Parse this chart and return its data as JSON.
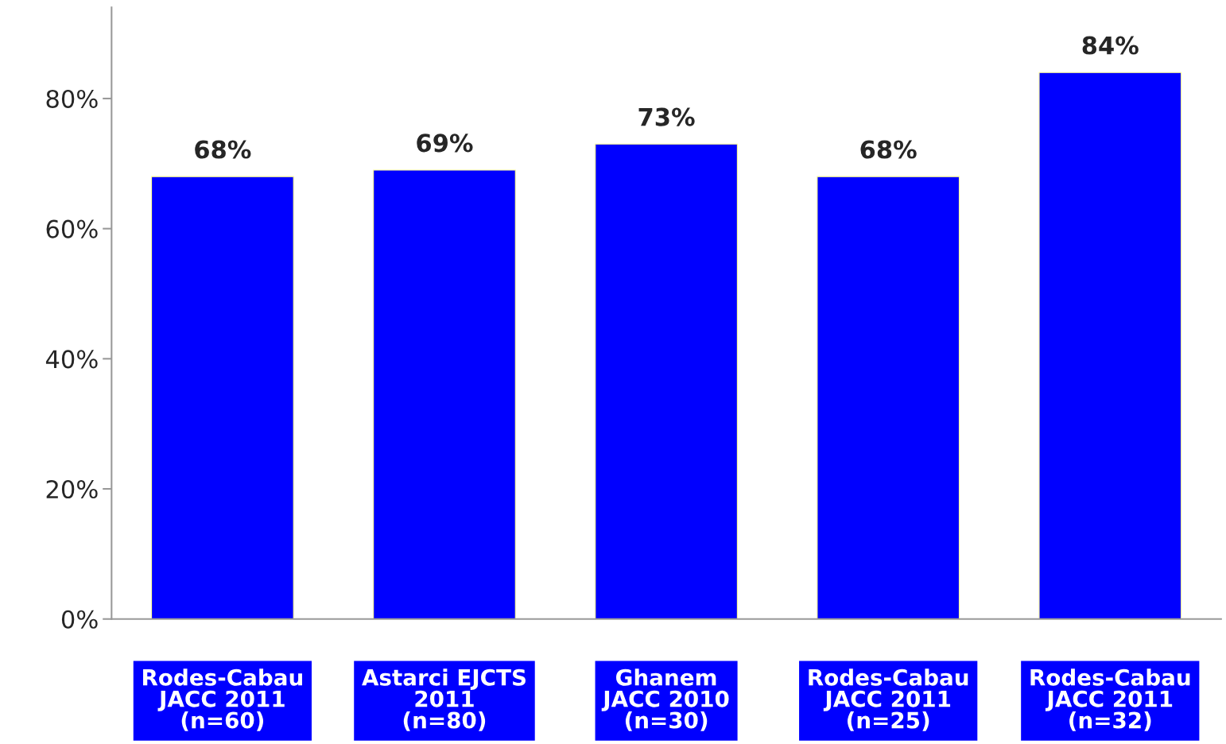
{
  "chart_data": {
    "type": "bar",
    "categories": [
      "Rodes-Cabau\nJACC 2011\n(n=60)",
      "Astarci EJCTS\n2011\n(n=80)",
      "Ghanem\nJACC 2010\n(n=30)",
      "Rodes-Cabau\nJACC 2011\n(n=25)",
      "Rodes-Cabau\nJACC 2011\n(n=32)"
    ],
    "values": [
      68,
      69,
      73,
      68,
      84
    ],
    "value_labels": [
      "68%",
      "69%",
      "73%",
      "68%",
      "84%"
    ],
    "color": "#0000ff",
    "ylim": [
      0,
      94
    ],
    "yticks": [
      {
        "value": 0,
        "label": "0%"
      },
      {
        "value": 20,
        "label": "20%"
      },
      {
        "value": 40,
        "label": "40%"
      },
      {
        "value": 60,
        "label": "60%"
      },
      {
        "value": 80,
        "label": "80%"
      }
    ],
    "grid": false,
    "legend": false
  }
}
